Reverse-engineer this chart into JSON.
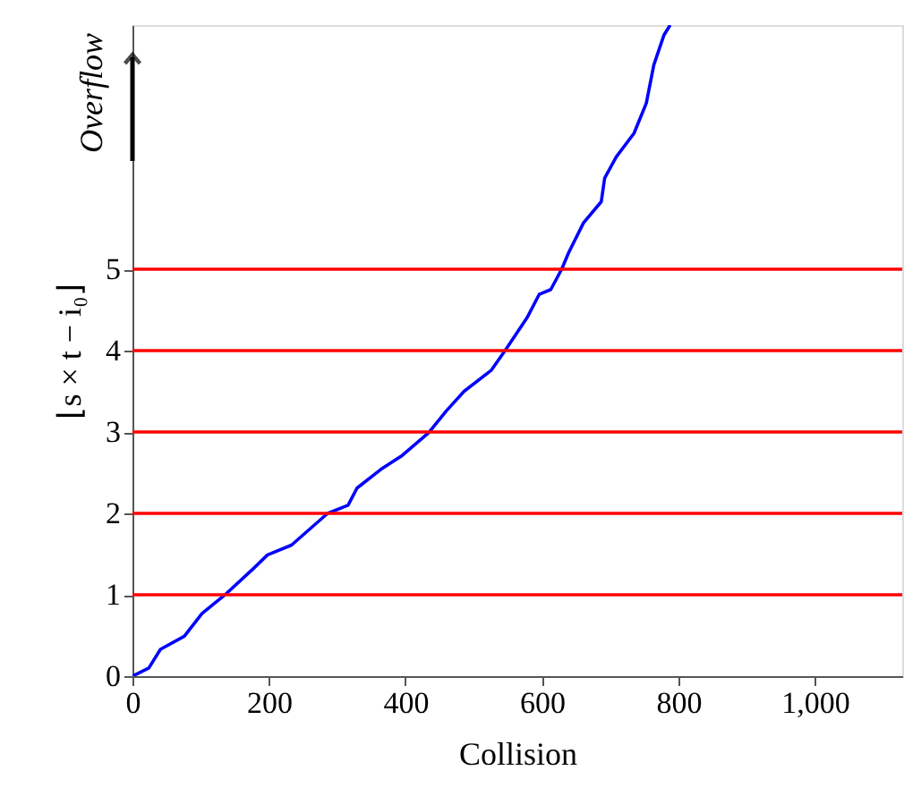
{
  "chart_data": {
    "type": "line",
    "xlabel": "Collision",
    "ylabel": "⌊s × t − i₀⌋",
    "xlim": [
      0,
      1128
    ],
    "ylim": [
      0,
      8
    ],
    "xticks": [
      0,
      200,
      400,
      600,
      800,
      {
        "value": 1000,
        "label": "1,000"
      }
    ],
    "yticks": [
      0,
      1,
      2,
      3,
      4,
      5
    ],
    "grid": false,
    "annotations": [
      "Overflow"
    ],
    "ref_lines": [
      {
        "axis": "y",
        "value": 1,
        "color": "#ff0000"
      },
      {
        "axis": "y",
        "value": 2,
        "color": "#ff0000"
      },
      {
        "axis": "y",
        "value": 3,
        "color": "#ff0000"
      },
      {
        "axis": "y",
        "value": 4,
        "color": "#ff0000"
      },
      {
        "axis": "y",
        "value": 5,
        "color": "#ff0000"
      }
    ],
    "series": [
      {
        "color": "#0000ff",
        "x": [
          0,
          24,
          41,
          76,
          102,
          137,
          177,
          198,
          233,
          286,
          316,
          329,
          364,
          395,
          434,
          460,
          486,
          526,
          546,
          578,
          596,
          613,
          629,
          639,
          661,
          687,
          692,
          709,
          735,
          753,
          764,
          779,
          788
        ],
        "values": [
          0,
          0.1,
          0.33,
          0.49,
          0.77,
          1.01,
          1.32,
          1.49,
          1.61,
          2.0,
          2.1,
          2.31,
          2.54,
          2.71,
          2.99,
          3.26,
          3.5,
          3.76,
          4.0,
          4.4,
          4.69,
          4.75,
          5.0,
          5.2,
          5.57,
          5.83,
          6.12,
          6.38,
          6.67,
          7.04,
          7.51,
          7.88,
          8.0
        ]
      }
    ]
  }
}
